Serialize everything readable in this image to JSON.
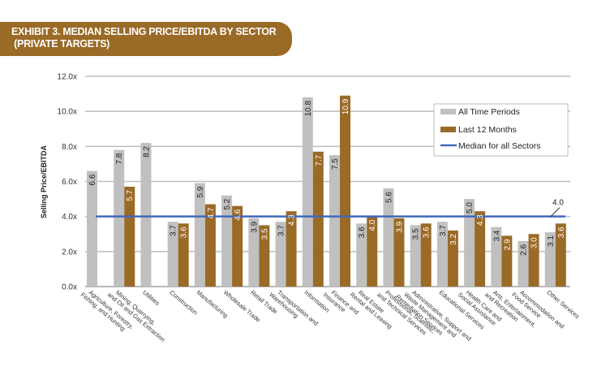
{
  "header": {
    "title_line1": "EXHIBIT 3. MEDIAN SELLING PRICE/EBITDA BY SECTOR",
    "title_line2": " (PRIVATE TARGETS)"
  },
  "colors": {
    "banner": "#9a6a27",
    "all_time": "#c0c0c0",
    "last_12": "#9a6a27",
    "median_line": "#4169b9",
    "grid": "#bdbdbd"
  },
  "chart_data": {
    "type": "bar",
    "title": "EXHIBIT 3. MEDIAN SELLING PRICE/EBITDA BY SECTOR (PRIVATE TARGETS)",
    "xlabel": "",
    "ylabel": "Selling Price/EBITDA",
    "ylim": [
      0,
      12
    ],
    "yticks": [
      "0.0x",
      "2.0x",
      "4.0x",
      "6.0x",
      "8.0x",
      "10.0x",
      "12.0x"
    ],
    "grid": true,
    "legend_position": "top-right",
    "categories": [
      [
        "Agriculture, Forestry,",
        "Fishing, and Hunting"
      ],
      [
        "Mining, Quarrying,",
        "and Oil and Gas Extraction"
      ],
      [
        "Utilities"
      ],
      [
        "Construction"
      ],
      [
        "Manufacturing"
      ],
      [
        "Wholesale Trade"
      ],
      [
        "Retail Trade"
      ],
      [
        "Transportation and",
        "Warehousing"
      ],
      [
        "Information"
      ],
      [
        "Finance and",
        "Insurance"
      ],
      [
        "Real Estate",
        "Rental and Leasing"
      ],
      [
        "Professional, Scientific,",
        "and Technical Services"
      ],
      [
        "Administrative, Support and",
        "Waste Management and",
        "Remediation Services"
      ],
      [
        "Educational Services"
      ],
      [
        "Health Care and",
        "Social Assistance"
      ],
      [
        "Arts, Entertainment,",
        "and Recreation"
      ],
      [
        "Accommodation and",
        "Food Service"
      ],
      [
        "Other Services"
      ]
    ],
    "series": [
      {
        "name": "All Time Periods",
        "values": [
          6.6,
          7.8,
          8.2,
          3.7,
          5.9,
          5.2,
          3.9,
          3.7,
          10.8,
          7.5,
          3.6,
          5.6,
          3.5,
          3.7,
          5.0,
          3.4,
          2.6,
          3.1
        ]
      },
      {
        "name": "Last 12 Months",
        "values": [
          null,
          5.7,
          null,
          3.6,
          4.7,
          4.6,
          3.5,
          4.3,
          7.7,
          10.9,
          4.0,
          3.9,
          3.6,
          3.2,
          4.3,
          2.9,
          3.0,
          3.6
        ]
      }
    ],
    "reference_line": {
      "name": "Median for all Sectors",
      "value": 4.0,
      "label": "4.0"
    }
  }
}
